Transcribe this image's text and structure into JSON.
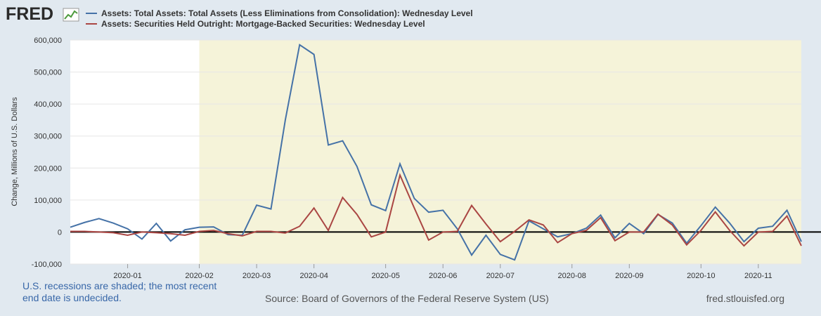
{
  "logo": "FRED",
  "chart_data": {
    "type": "line",
    "y_label": "Change, Millions of U.S. Dollars",
    "categories": [
      null,
      null,
      null,
      null,
      "2020-01",
      null,
      null,
      null,
      null,
      "2020-02",
      null,
      null,
      null,
      "2020-03",
      null,
      null,
      null,
      "2020-04",
      null,
      null,
      null,
      null,
      "2020-05",
      null,
      null,
      null,
      "2020-06",
      null,
      null,
      null,
      "2020-07",
      null,
      null,
      null,
      null,
      "2020-08",
      null,
      null,
      null,
      "2020-09",
      null,
      null,
      null,
      null,
      "2020-10",
      null,
      null,
      null,
      "2020-11",
      null,
      null,
      null
    ],
    "series": [
      {
        "name": "Assets: Total Assets: Total Assets (Less Eliminations from Consolidation): Wednesday Level",
        "color": "#4572a7",
        "values": [
          15000,
          30000,
          42000,
          28000,
          10000,
          -22000,
          27000,
          -28000,
          7000,
          15000,
          16000,
          -8000,
          -10000,
          84000,
          72000,
          350000,
          585000,
          555000,
          272000,
          285000,
          205000,
          85000,
          67000,
          213000,
          105000,
          62000,
          68000,
          10000,
          -72000,
          -10000,
          -70000,
          -87000,
          35000,
          10000,
          -15000,
          -5000,
          12000,
          53000,
          -18000,
          27000,
          -5000,
          55000,
          28000,
          -35000,
          20000,
          78000,
          28000,
          -30000,
          12000,
          18000,
          68000,
          -30000
        ]
      },
      {
        "name": "Assets: Securities Held Outright: Mortgage-Backed Securities: Wednesday Level",
        "color": "#aa4643",
        "values": [
          2000,
          2000,
          0,
          -2000,
          -10000,
          0,
          -2000,
          -5000,
          -10000,
          2000,
          5000,
          -5000,
          -12000,
          2000,
          2000,
          -3000,
          18000,
          75000,
          5000,
          108000,
          55000,
          -15000,
          0,
          178000,
          75000,
          -25000,
          0,
          2000,
          83000,
          25000,
          -30000,
          2000,
          38000,
          22000,
          -33000,
          -5000,
          5000,
          45000,
          -27000,
          0,
          0,
          56000,
          22000,
          -40000,
          5000,
          63000,
          5000,
          -43000,
          0,
          2000,
          50000,
          -43000
        ]
      }
    ],
    "ylim": [
      -100000,
      600000
    ],
    "yticks": [
      {
        "value": -100000,
        "label": "-100,000"
      },
      0,
      {
        "value": 100000,
        "label": "100,000"
      },
      {
        "value": 200000,
        "label": "200,000"
      },
      {
        "value": 300000,
        "label": "300,000"
      },
      {
        "value": 400000,
        "label": "400,000"
      },
      {
        "value": 500000,
        "label": "500,000"
      },
      {
        "value": 600000,
        "label": "600,000"
      }
    ],
    "grid": true,
    "shaded_from": "2020-02",
    "shade_color": "#f5f3d9",
    "note": "U.S. recessions are shaded; the most recent end date is undecided.",
    "source": "Source: Board of Governors of the Federal Reserve System (US)",
    "url": "fred.stlouisfed.org"
  }
}
